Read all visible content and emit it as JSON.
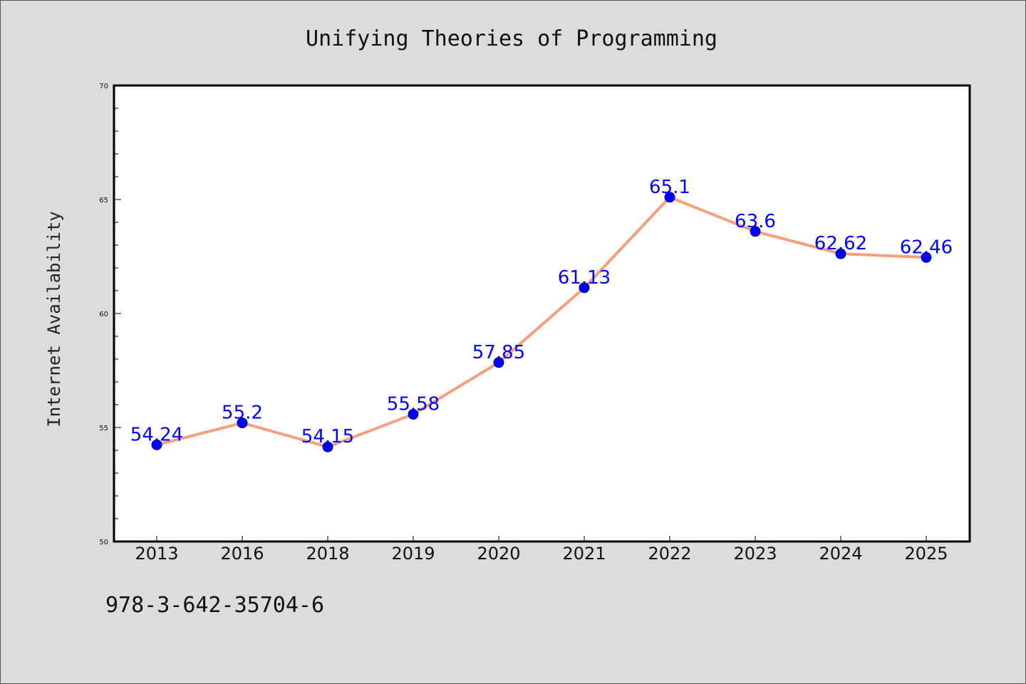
{
  "chart_data": {
    "type": "line",
    "title": "Unifying Theories of Programming",
    "xlabel": "",
    "ylabel": "Internet Availability",
    "categories": [
      "2013",
      "2016",
      "2018",
      "2019",
      "2020",
      "2021",
      "2022",
      "2023",
      "2024",
      "2025"
    ],
    "series": [
      {
        "values": [
          54.24,
          55.2,
          54.15,
          55.58,
          57.85,
          61.13,
          65.1,
          63.6,
          62.62,
          62.46
        ],
        "data_labels": [
          "54.24",
          "55.2",
          "54.15",
          "55.58",
          "57.85",
          "61.13",
          "65.1",
          "63.6",
          "62.62",
          "62.46"
        ]
      }
    ],
    "ylim": [
      50,
      70
    ],
    "yticks": [
      "50",
      "55",
      "60",
      "65",
      "70"
    ],
    "grid": false,
    "legend": "none",
    "colors": {
      "line": "#f4a07c",
      "marker": "#0000ff",
      "marker_edge": "#000080",
      "data_label": "#0000ff",
      "plot_background": "#ffffff",
      "page_background": "#dcdcdc"
    }
  },
  "footer": {
    "note": "978-3-642-35704-6"
  }
}
